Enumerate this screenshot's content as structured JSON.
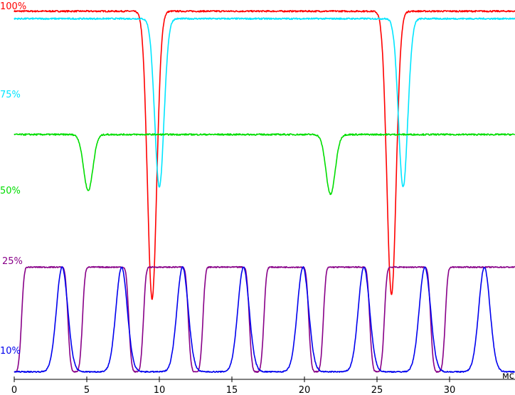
{
  "chart_data": {
    "type": "line",
    "xlabel": "мс",
    "xlim": [
      0,
      35
    ],
    "x_ticks": [
      "0",
      "5",
      "10",
      "15",
      "20",
      "25",
      "30"
    ],
    "grid": false,
    "series": [
      {
        "name": "100%",
        "color": "#ff0000",
        "baseline_fraction": 0.97,
        "dips": [
          {
            "center_ms": 9.5,
            "min_fraction": 0.2
          },
          {
            "center_ms": 26.0,
            "min_fraction": 0.21
          }
        ]
      },
      {
        "name": "75%",
        "color": "#00e5ff",
        "baseline_fraction": 0.95,
        "dips": [
          {
            "center_ms": 10.0,
            "min_fraction": 0.5
          },
          {
            "center_ms": 26.8,
            "min_fraction": 0.5
          }
        ]
      },
      {
        "name": "50%",
        "color": "#00dd00",
        "baseline_fraction": 0.64,
        "dips": [
          {
            "center_ms": 5.1,
            "min_fraction": 0.49
          },
          {
            "center_ms": 21.8,
            "min_fraction": 0.48
          }
        ]
      },
      {
        "name": "25%",
        "color": "#880088",
        "baseline_fraction": 0.285,
        "min_fraction": 0.005,
        "period_ms": 4.16,
        "pulse_centers_ms": [
          2.1,
          6.3,
          10.5,
          14.6,
          18.8,
          22.9,
          27.1,
          31.3
        ]
      },
      {
        "name": "10%",
        "color": "#0000ee",
        "baseline_fraction": 0.005,
        "peak_fraction": 0.285,
        "period_ms": 4.16,
        "pulse_centers_ms": [
          3.3,
          7.4,
          11.6,
          15.8,
          19.9,
          24.1,
          28.3,
          32.4
        ]
      }
    ]
  }
}
